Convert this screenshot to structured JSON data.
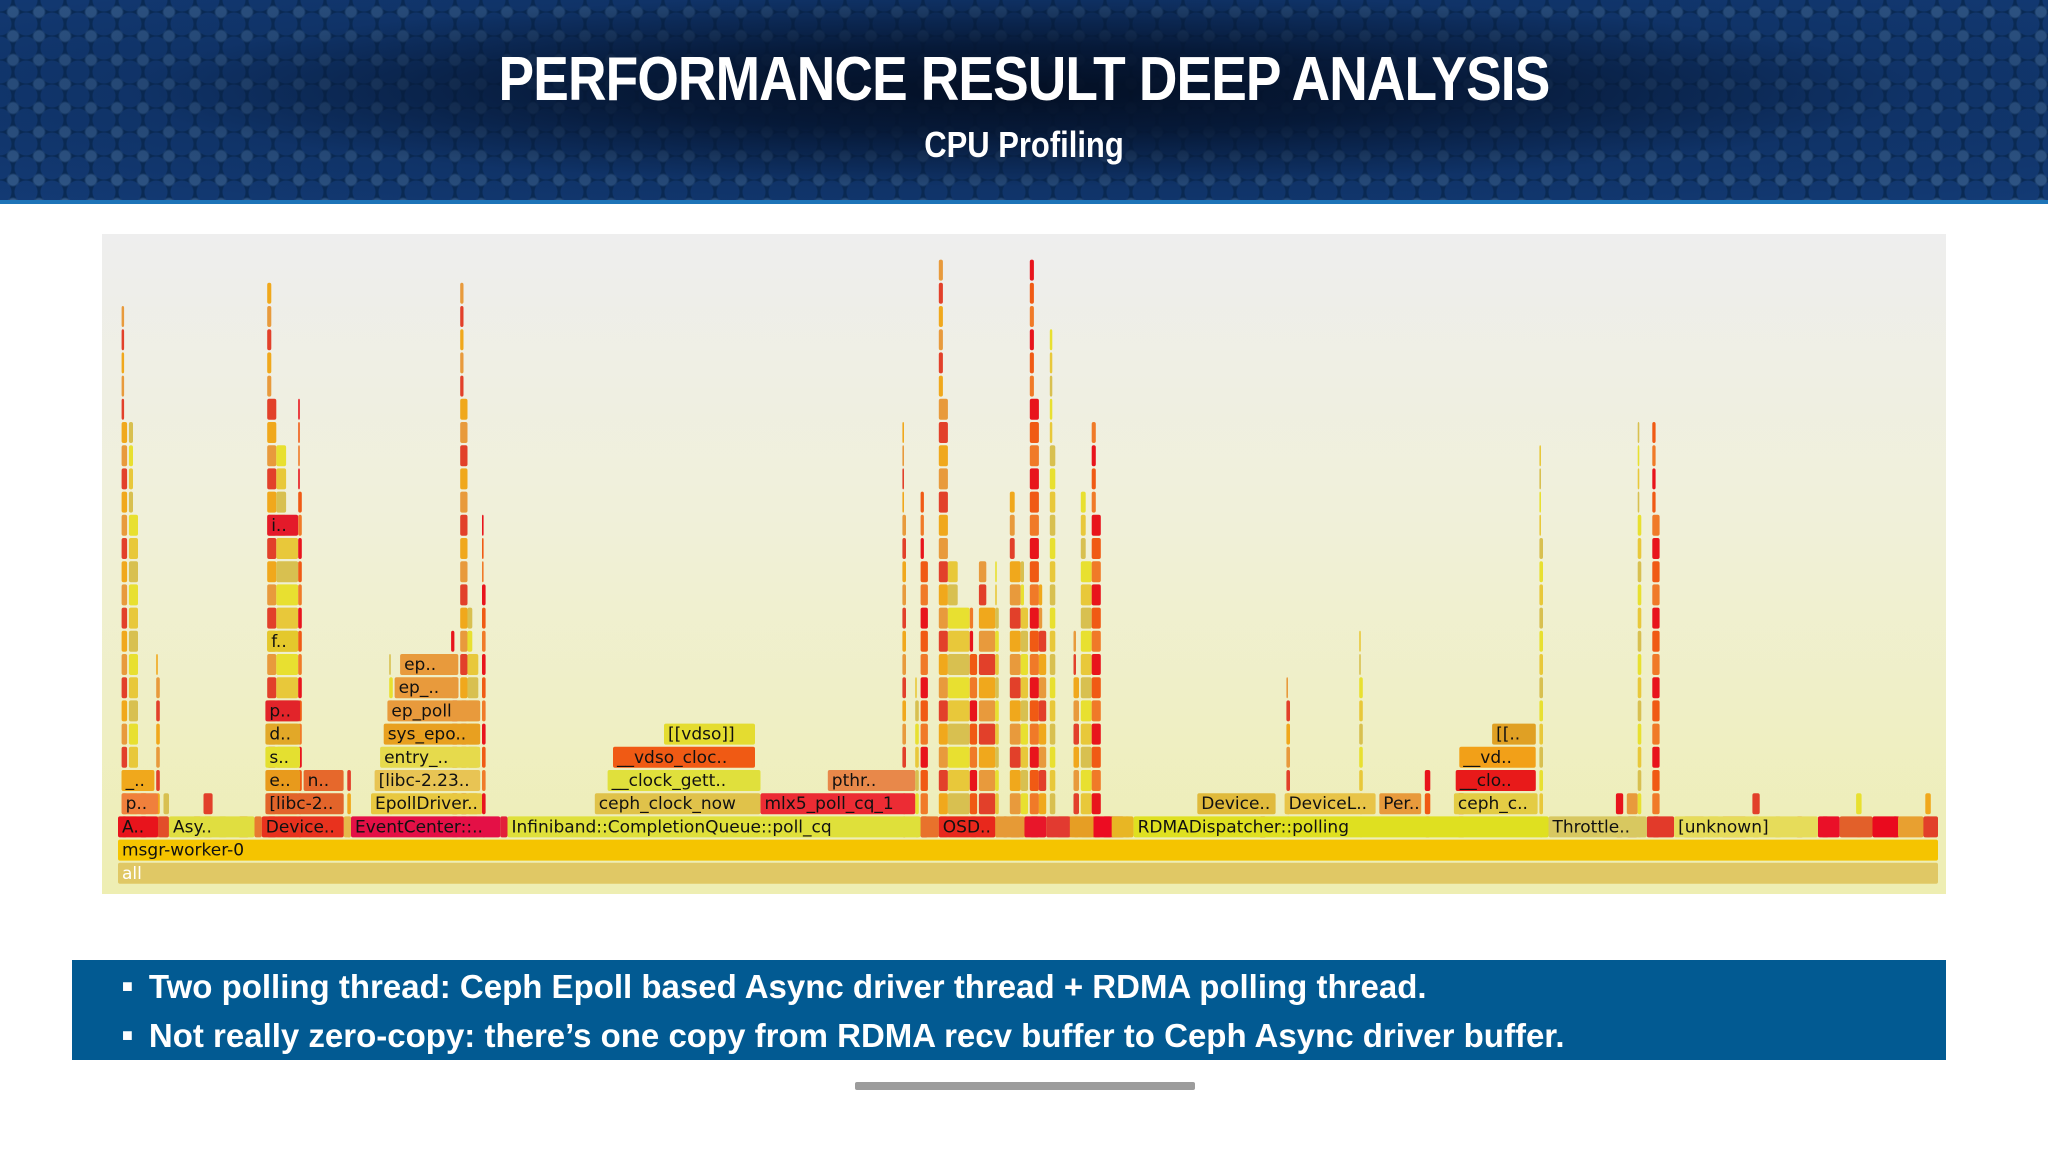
{
  "slide": {
    "title": "PERFORMANCE RESULT DEEP ANALYSIS",
    "subtitle": "CPU Profiling",
    "bullets": [
      "Two polling thread: Ceph Epoll based Async driver thread + RDMA polling thread.",
      "Not really zero-copy: there’s one copy from RDMA recv buffer to Ceph Async driver buffer."
    ]
  },
  "chart_data": {
    "type": "flamegraph",
    "frames": [
      {
        "label": "all",
        "depth": 0,
        "start": 0.0,
        "end": 1.0,
        "color": "#e0c865"
      },
      {
        "label": "msgr-worker-0",
        "depth": 1,
        "start": 0.0,
        "end": 1.0,
        "color": "#f5c400"
      },
      {
        "label": "A..",
        "depth": 2,
        "start": 0.0,
        "end": 0.022,
        "color": "#e8141c"
      },
      {
        "label": "Asy..",
        "depth": 2,
        "start": 0.028,
        "end": 0.075,
        "color": "#e0de40"
      },
      {
        "label": "Device..",
        "depth": 2,
        "start": 0.079,
        "end": 0.124,
        "color": "#e8321e"
      },
      {
        "label": "EventCenter::..",
        "depth": 2,
        "start": 0.128,
        "end": 0.21,
        "color": "#e41046"
      },
      {
        "label": "Infiniband::CompletionQueue::poll_cq",
        "depth": 2,
        "start": 0.214,
        "end": 0.441,
        "color": "#dfe03a"
      },
      {
        "label": "OSD..",
        "depth": 2,
        "start": 0.451,
        "end": 0.482,
        "color": "#e8281c"
      },
      {
        "label": "RDMADispatcher::polling",
        "depth": 2,
        "start": 0.558,
        "end": 0.786,
        "color": "#dfe020"
      },
      {
        "label": "Throttle..",
        "depth": 2,
        "start": 0.786,
        "end": 0.84,
        "color": "#d8c860"
      },
      {
        "label": "[unknown]",
        "depth": 2,
        "start": 0.855,
        "end": 0.934,
        "color": "#e6dc5a"
      },
      {
        "label": "p..",
        "depth": 3,
        "start": 0.002,
        "end": 0.022,
        "color": "#f0803c"
      },
      {
        "label": "[libc-2..",
        "depth": 3,
        "start": 0.081,
        "end": 0.124,
        "color": "#e2642a"
      },
      {
        "label": "EpollDriver..",
        "depth": 3,
        "start": 0.139,
        "end": 0.2,
        "color": "#e8c840"
      },
      {
        "label": "ceph_clock_now",
        "depth": 3,
        "start": 0.262,
        "end": 0.353,
        "color": "#e0c24a"
      },
      {
        "label": "mlx5_poll_cq_1",
        "depth": 3,
        "start": 0.353,
        "end": 0.438,
        "color": "#ec2c34"
      },
      {
        "label": "Device..",
        "depth": 3,
        "start": 0.593,
        "end": 0.636,
        "color": "#e0ba3c"
      },
      {
        "label": "DeviceL..",
        "depth": 3,
        "start": 0.641,
        "end": 0.691,
        "color": "#e8c448"
      },
      {
        "label": "Per..",
        "depth": 3,
        "start": 0.693,
        "end": 0.716,
        "color": "#e89a3c"
      },
      {
        "label": "ceph_c..",
        "depth": 3,
        "start": 0.734,
        "end": 0.78,
        "color": "#e4cc44"
      },
      {
        "label": "_..",
        "depth": 4,
        "start": 0.002,
        "end": 0.02,
        "color": "#f0a81c"
      },
      {
        "label": "e..",
        "depth": 4,
        "start": 0.081,
        "end": 0.1,
        "color": "#e89a1c"
      },
      {
        "label": "n..",
        "depth": 4,
        "start": 0.102,
        "end": 0.124,
        "color": "#e6682c"
      },
      {
        "label": "[libc-2.23..",
        "depth": 4,
        "start": 0.141,
        "end": 0.199,
        "color": "#e8c454"
      },
      {
        "label": "__clock_gett..",
        "depth": 4,
        "start": 0.269,
        "end": 0.353,
        "color": "#e0e03c"
      },
      {
        "label": "pthr..",
        "depth": 4,
        "start": 0.39,
        "end": 0.438,
        "color": "#e8884a"
      },
      {
        "label": "__clo..",
        "depth": 4,
        "start": 0.735,
        "end": 0.779,
        "color": "#e81a1a"
      },
      {
        "label": "s..",
        "depth": 5,
        "start": 0.081,
        "end": 0.1,
        "color": "#e4e030"
      },
      {
        "label": "entry_..",
        "depth": 5,
        "start": 0.144,
        "end": 0.199,
        "color": "#e6da4c"
      },
      {
        "label": "__vdso_cloc..",
        "depth": 5,
        "start": 0.272,
        "end": 0.35,
        "color": "#f05a14"
      },
      {
        "label": "__vd..",
        "depth": 5,
        "start": 0.737,
        "end": 0.779,
        "color": "#f2a018"
      },
      {
        "label": "d..",
        "depth": 6,
        "start": 0.081,
        "end": 0.1,
        "color": "#e2a828"
      },
      {
        "label": "sys_epo..",
        "depth": 6,
        "start": 0.146,
        "end": 0.199,
        "color": "#e8a020"
      },
      {
        "label": "[[vdso]]",
        "depth": 6,
        "start": 0.3,
        "end": 0.35,
        "color": "#e4dc30"
      },
      {
        "label": "[[..",
        "depth": 6,
        "start": 0.755,
        "end": 0.779,
        "color": "#e0a024"
      },
      {
        "label": "p..",
        "depth": 7,
        "start": 0.081,
        "end": 0.1,
        "color": "#e2242a"
      },
      {
        "label": "ep_poll",
        "depth": 7,
        "start": 0.148,
        "end": 0.199,
        "color": "#e89a3c"
      },
      {
        "label": "ep_..",
        "depth": 8,
        "start": 0.152,
        "end": 0.187,
        "color": "#e89a3c"
      },
      {
        "label": "ep..",
        "depth": 9,
        "start": 0.155,
        "end": 0.187,
        "color": "#e89a3c"
      },
      {
        "label": "f..",
        "depth": 10,
        "start": 0.082,
        "end": 0.099,
        "color": "#e4c82c"
      },
      {
        "label": "i..",
        "depth": 15,
        "start": 0.082,
        "end": 0.099,
        "color": "#e41a2a"
      }
    ],
    "towers": [
      {
        "start": 0.002,
        "end": 0.005,
        "height": 23,
        "seed": 1
      },
      {
        "start": 0.006,
        "end": 0.011,
        "height": 18,
        "seed": 2
      },
      {
        "start": 0.012,
        "end": 0.016,
        "height": 2,
        "seed": 3
      },
      {
        "start": 0.021,
        "end": 0.023,
        "height": 8,
        "seed": 4
      },
      {
        "start": 0.025,
        "end": 0.028,
        "height": 2,
        "seed": 5
      },
      {
        "start": 0.041,
        "end": 0.046,
        "height": 1,
        "seed": 6
      },
      {
        "start": 0.047,
        "end": 0.052,
        "height": 2,
        "seed": 7
      },
      {
        "start": 0.055,
        "end": 0.06,
        "height": 1,
        "seed": 8
      },
      {
        "start": 0.066,
        "end": 0.072,
        "height": 1,
        "seed": 9
      },
      {
        "start": 0.082,
        "end": 0.087,
        "height": 24,
        "seed": 10
      },
      {
        "start": 0.087,
        "end": 0.099,
        "height": 17,
        "seed": 11
      },
      {
        "start": 0.099,
        "end": 0.101,
        "height": 19,
        "seed": 12
      },
      {
        "start": 0.126,
        "end": 0.128,
        "height": 3,
        "seed": 13
      },
      {
        "start": 0.149,
        "end": 0.151,
        "height": 8,
        "seed": 14
      },
      {
        "start": 0.183,
        "end": 0.187,
        "height": 9,
        "seed": 15
      },
      {
        "start": 0.188,
        "end": 0.192,
        "height": 24,
        "seed": 16
      },
      {
        "start": 0.192,
        "end": 0.198,
        "height": 10,
        "seed": 17
      },
      {
        "start": 0.2,
        "end": 0.202,
        "height": 14,
        "seed": 18
      },
      {
        "start": 0.431,
        "end": 0.433,
        "height": 18,
        "seed": 19
      },
      {
        "start": 0.438,
        "end": 0.44,
        "height": 7,
        "seed": 20
      },
      {
        "start": 0.441,
        "end": 0.445,
        "height": 15,
        "seed": 21
      },
      {
        "start": 0.451,
        "end": 0.456,
        "height": 25,
        "seed": 22
      },
      {
        "start": 0.456,
        "end": 0.468,
        "height": 12,
        "seed": 23
      },
      {
        "start": 0.468,
        "end": 0.472,
        "height": 10,
        "seed": 24
      },
      {
        "start": 0.473,
        "end": 0.482,
        "height": 12,
        "seed": 25
      },
      {
        "start": 0.482,
        "end": 0.484,
        "height": 12,
        "seed": 26
      },
      {
        "start": 0.486,
        "end": 0.489,
        "height": 1,
        "seed": 27
      },
      {
        "start": 0.49,
        "end": 0.496,
        "height": 15,
        "seed": 28
      },
      {
        "start": 0.496,
        "end": 0.5,
        "height": 12,
        "seed": 29
      },
      {
        "start": 0.501,
        "end": 0.506,
        "height": 25,
        "seed": 30
      },
      {
        "start": 0.506,
        "end": 0.51,
        "height": 11,
        "seed": 31
      },
      {
        "start": 0.512,
        "end": 0.515,
        "height": 22,
        "seed": 32
      },
      {
        "start": 0.516,
        "end": 0.524,
        "height": 1,
        "seed": 33
      },
      {
        "start": 0.525,
        "end": 0.528,
        "height": 9,
        "seed": 34
      },
      {
        "start": 0.529,
        "end": 0.535,
        "height": 15,
        "seed": 35
      },
      {
        "start": 0.535,
        "end": 0.54,
        "height": 18,
        "seed": 36
      },
      {
        "start": 0.541,
        "end": 0.553,
        "height": 1,
        "seed": 37
      },
      {
        "start": 0.553,
        "end": 0.556,
        "height": 1,
        "seed": 38
      },
      {
        "start": 0.627,
        "end": 0.631,
        "height": 1,
        "seed": 39
      },
      {
        "start": 0.642,
        "end": 0.644,
        "height": 7,
        "seed": 40
      },
      {
        "start": 0.682,
        "end": 0.684,
        "height": 9,
        "seed": 41
      },
      {
        "start": 0.718,
        "end": 0.721,
        "height": 3,
        "seed": 42
      },
      {
        "start": 0.736,
        "end": 0.74,
        "height": 3,
        "seed": 43
      },
      {
        "start": 0.781,
        "end": 0.783,
        "height": 17,
        "seed": 44
      },
      {
        "start": 0.823,
        "end": 0.827,
        "height": 2,
        "seed": 45
      },
      {
        "start": 0.829,
        "end": 0.835,
        "height": 2,
        "seed": 46
      },
      {
        "start": 0.835,
        "end": 0.837,
        "height": 18,
        "seed": 47
      },
      {
        "start": 0.843,
        "end": 0.847,
        "height": 18,
        "seed": 48
      },
      {
        "start": 0.86,
        "end": 0.872,
        "height": 1,
        "seed": 49
      },
      {
        "start": 0.873,
        "end": 0.88,
        "height": 1,
        "seed": 50
      },
      {
        "start": 0.881,
        "end": 0.895,
        "height": 1,
        "seed": 51
      },
      {
        "start": 0.898,
        "end": 0.902,
        "height": 2,
        "seed": 52
      },
      {
        "start": 0.91,
        "end": 0.914,
        "height": 1,
        "seed": 53
      },
      {
        "start": 0.922,
        "end": 0.926,
        "height": 1,
        "seed": 54
      },
      {
        "start": 0.936,
        "end": 0.94,
        "height": 1,
        "seed": 55
      },
      {
        "start": 0.955,
        "end": 0.958,
        "height": 2,
        "seed": 56
      },
      {
        "start": 0.975,
        "end": 0.979,
        "height": 1,
        "seed": 57
      },
      {
        "start": 0.993,
        "end": 0.996,
        "height": 2,
        "seed": 58
      }
    ],
    "fillers": [
      {
        "depth": 2,
        "start": 0.022,
        "end": 0.028,
        "color": "#e24e2a"
      },
      {
        "depth": 2,
        "start": 0.075,
        "end": 0.079,
        "color": "#e87a30"
      },
      {
        "depth": 2,
        "start": 0.124,
        "end": 0.128,
        "color": "#e6b84a"
      },
      {
        "depth": 2,
        "start": 0.21,
        "end": 0.214,
        "color": "#e2203a"
      },
      {
        "depth": 2,
        "start": 0.441,
        "end": 0.451,
        "color": "#e8722c"
      },
      {
        "depth": 2,
        "start": 0.482,
        "end": 0.498,
        "color": "#e69a36"
      },
      {
        "depth": 2,
        "start": 0.498,
        "end": 0.51,
        "color": "#e8162a"
      },
      {
        "depth": 2,
        "start": 0.51,
        "end": 0.523,
        "color": "#e23a30"
      },
      {
        "depth": 2,
        "start": 0.523,
        "end": 0.536,
        "color": "#e69e24"
      },
      {
        "depth": 2,
        "start": 0.536,
        "end": 0.546,
        "color": "#ec0c22"
      },
      {
        "depth": 2,
        "start": 0.546,
        "end": 0.558,
        "color": "#e8b624"
      },
      {
        "depth": 2,
        "start": 0.84,
        "end": 0.855,
        "color": "#e23a2a"
      },
      {
        "depth": 2,
        "start": 0.934,
        "end": 0.946,
        "color": "#ea1028"
      },
      {
        "depth": 2,
        "start": 0.946,
        "end": 0.964,
        "color": "#e2602a"
      },
      {
        "depth": 2,
        "start": 0.964,
        "end": 0.978,
        "color": "#ea0a1e"
      },
      {
        "depth": 2,
        "start": 0.978,
        "end": 0.992,
        "color": "#e8a030"
      },
      {
        "depth": 2,
        "start": 0.992,
        "end": 1.0,
        "color": "#e2402a"
      }
    ]
  }
}
